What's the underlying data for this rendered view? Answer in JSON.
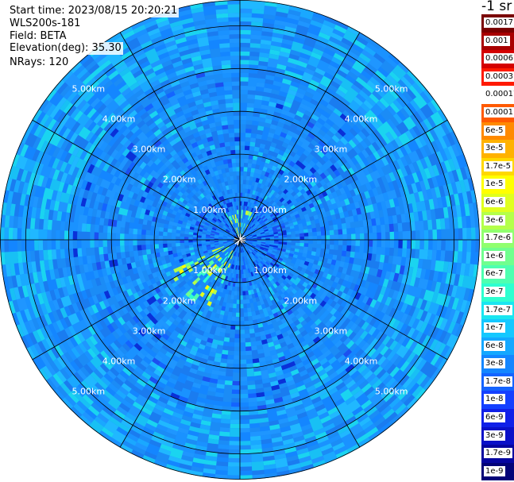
{
  "info": {
    "start_time": "Start time: 2023/08/15 20:20:21",
    "instrument": "WLS200s-181",
    "field": "Field: BETA",
    "elevation": "Elevation(deg): 35.30",
    "nrays": "NRays: 120"
  },
  "chart_data": {
    "type": "heatmap",
    "projection": "polar-ppi",
    "units_label": "-1 sr",
    "ring_labels": [
      "1.00km",
      "2.00km",
      "3.00km",
      "4.00km",
      "5.00km"
    ],
    "ring_ranges_km": [
      1,
      2,
      3,
      4,
      5
    ],
    "max_range_km": 5.6,
    "spoke_count": 12,
    "nrays": 120,
    "colorbar": {
      "labels": [
        "0.0017",
        "0.001",
        "0.0006",
        "0.0003",
        "0.00017",
        "0.0001",
        "6e-5",
        "3e-5",
        "1.7e-5",
        "1e-5",
        "6e-6",
        "3e-6",
        "1.7e-6",
        "1e-6",
        "6e-7",
        "3e-7",
        "1.7e-7",
        "1e-7",
        "6e-8",
        "3e-8",
        "1.7e-8",
        "1e-8",
        "6e-9",
        "3e-9",
        "1.7e-9",
        "1e-9"
      ],
      "colors": [
        "#7a0000",
        "#a80000",
        "#d40000",
        "#ff1a00",
        "#ffffff",
        "#ff5a00",
        "#ff8a00",
        "#ffb200",
        "#ffd800",
        "#ffff00",
        "#e0ff1f",
        "#b4ff4a",
        "#90ff6e",
        "#70ff8e",
        "#4effb0",
        "#2effd0",
        "#1ae6f0",
        "#14c8ff",
        "#14a8ff",
        "#1486ff",
        "#1464ff",
        "#1440ff",
        "#1020e8",
        "#0a10c8",
        "#0606a0",
        "#030378"
      ]
    }
  }
}
